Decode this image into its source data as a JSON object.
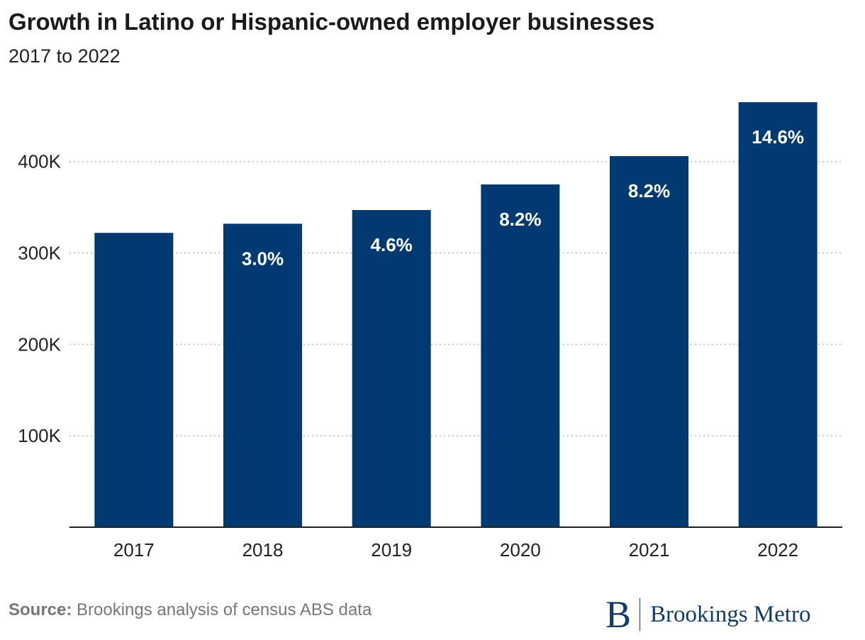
{
  "title": "Growth in Latino or Hispanic-owned employer businesses",
  "subtitle": "2017 to 2022",
  "source_label": "Source:",
  "source_text": " Brookings analysis of census ABS data",
  "brand": {
    "mark": "B",
    "name": "Brookings Metro"
  },
  "colors": {
    "bar": "#003a70",
    "label": "#ffffff",
    "grid": "#bbbbbb",
    "axis": "#222222"
  },
  "chart_data": {
    "type": "bar",
    "categories": [
      "2017",
      "2018",
      "2019",
      "2020",
      "2021",
      "2022"
    ],
    "values": [
      322000,
      332000,
      347000,
      375000,
      406000,
      465000
    ],
    "data_labels": [
      "",
      "3.0%",
      "4.6%",
      "8.2%",
      "8.2%",
      "14.6%"
    ],
    "y_ticks": [
      100000,
      200000,
      300000,
      400000
    ],
    "y_tick_labels": [
      "100K",
      "200K",
      "300K",
      "400K"
    ],
    "ylim": [
      0,
      465000
    ],
    "grid": true,
    "legend": "none"
  }
}
